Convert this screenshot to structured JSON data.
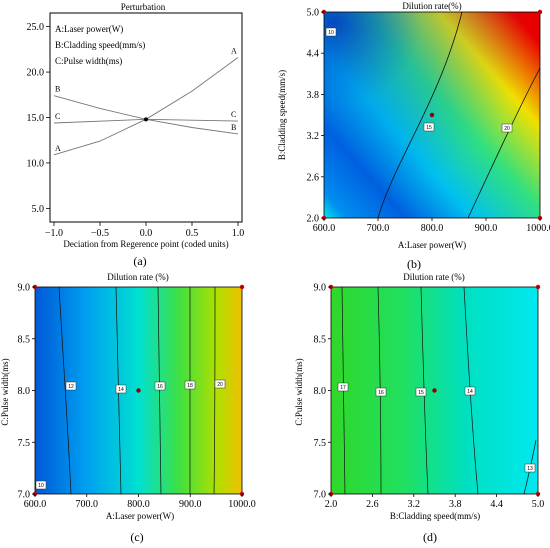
{
  "colors": {
    "jet": [
      "#0000b0",
      "#0050e0",
      "#00a8f0",
      "#00e0e0",
      "#20e070",
      "#90e010",
      "#f0d000",
      "#f06000",
      "#e00000"
    ]
  },
  "chart_data": [
    {
      "type": "line",
      "title": "Perturbation",
      "xlabel": "Deciation from Regerence point (coded units)",
      "ylabel": "",
      "xlim": [
        -1.0,
        1.0
      ],
      "ylim": [
        3.5,
        26.5
      ],
      "xticks": [
        "−1.0",
        "−0.5",
        "0.0",
        "0.5",
        "1.0"
      ],
      "yticks": [
        "5.0",
        "10.0",
        "15.0",
        "20.0",
        "25.0"
      ],
      "legend": [
        "A:Laser power(W)",
        "B:Cladding speed(mm/s)",
        "C:Pulse width(ms)"
      ],
      "reference_point": {
        "x": 0.0,
        "y": 14.8
      },
      "series": [
        {
          "name": "A",
          "x": [
            -1.0,
            -0.5,
            0.0,
            0.5,
            1.0
          ],
          "y": [
            10.9,
            12.4,
            14.8,
            17.9,
            21.6
          ]
        },
        {
          "name": "B",
          "x": [
            -1.0,
            -0.5,
            0.0,
            0.5,
            1.0
          ],
          "y": [
            17.4,
            16.0,
            14.8,
            13.9,
            13.2
          ]
        },
        {
          "name": "C",
          "x": [
            -1.0,
            0.0,
            1.0
          ],
          "y": [
            14.4,
            14.8,
            14.6
          ]
        }
      ],
      "caption_letter": "(a)"
    },
    {
      "type": "heatmap",
      "title": "Dilution rate(%)",
      "xlabel": "A:Laser power(W)",
      "ylabel": "B:Cladding speed(mm/s)",
      "xlim": [
        600.0,
        1000.0
      ],
      "ylim": [
        2.0,
        5.0
      ],
      "xticks": [
        "600.0",
        "700.0",
        "800.0",
        "900.0",
        "1000.0"
      ],
      "yticks": [
        "2.0",
        "2.6",
        "3.2",
        "3.8",
        "4.4",
        "5.0"
      ],
      "contour_labels": [
        "10",
        "15",
        "20"
      ],
      "design_point": {
        "x": 800.0,
        "y": 3.5
      },
      "caption_letter": "(b)"
    },
    {
      "type": "heatmap",
      "title": "Dilution rate (%)",
      "xlabel": "A:Laser power(W)",
      "ylabel": "C:Pulse width(ms)",
      "xlim": [
        600.0,
        1000.0
      ],
      "ylim": [
        7.0,
        9.0
      ],
      "xticks": [
        "600.0",
        "700.0",
        "800.0",
        "900.0",
        "1000.0"
      ],
      "yticks": [
        "7.0",
        "7.5",
        "8.0",
        "8.5",
        "9.0"
      ],
      "contour_labels": [
        "10",
        "12",
        "14",
        "16",
        "18",
        "20"
      ],
      "design_point": {
        "x": 800.0,
        "y": 8.0
      },
      "caption_letter": "(c)"
    },
    {
      "type": "heatmap",
      "title": "Dilution rate (%)",
      "xlabel": "B:Cladding speed(mm/s)",
      "ylabel": "C:Pulse width(ms)",
      "xlim": [
        2.0,
        5.0
      ],
      "ylim": [
        7.0,
        9.0
      ],
      "xticks": [
        "2.0",
        "2.6",
        "3.2",
        "3.8",
        "4.4",
        "5.0"
      ],
      "yticks": [
        "7.0",
        "7.5",
        "8.0",
        "8.5",
        "9.0"
      ],
      "contour_labels": [
        "17",
        "16",
        "15",
        "14",
        "13"
      ],
      "design_point": {
        "x": 3.5,
        "y": 8.0
      },
      "caption_letter": "(d)"
    }
  ]
}
